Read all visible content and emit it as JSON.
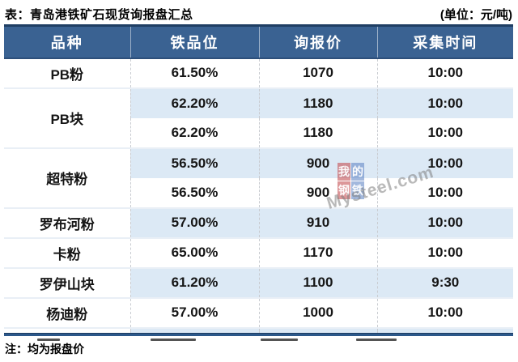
{
  "page": {
    "title": "表：青岛港铁矿石现货询报盘汇总",
    "unit": "(单位：元/吨)",
    "note": "注：均为报盘价"
  },
  "table": {
    "headers": [
      "品种",
      "铁品位",
      "询报价",
      "采集时间"
    ],
    "rows": [
      {
        "variety": "PB粉",
        "grade": "61.50%",
        "price": "1070",
        "time": "10:00"
      },
      {
        "variety": "PB块",
        "grade": "62.20%",
        "price": "1180",
        "time": "10:00"
      },
      {
        "grade": "62.20%",
        "price": "1180",
        "time": "10:00"
      },
      {
        "variety": "超特粉",
        "grade": "56.50%",
        "price": "900",
        "time": "10:00"
      },
      {
        "grade": "56.50%",
        "price": "900",
        "time": "10:00"
      },
      {
        "variety": "罗布河粉",
        "grade": "57.00%",
        "price": "910",
        "time": "10:00"
      },
      {
        "variety": "卡粉",
        "grade": "65.00%",
        "price": "1170",
        "time": "10:00"
      },
      {
        "variety": "罗伊山块",
        "grade": "61.20%",
        "price": "1100",
        "time": "9:30"
      },
      {
        "variety": "杨迪粉",
        "grade": "57.00%",
        "price": "1000",
        "time": "10:00"
      }
    ]
  },
  "watermark": {
    "squares": [
      "我",
      "的",
      "钢",
      "铁"
    ],
    "brand_text": "Mysteel.com",
    "red": "#c55054",
    "blue": "#6489c7"
  },
  "colors": {
    "header_bg": "#3a6292",
    "header_border": "#1f3e63",
    "row_alt": "#dce9f5",
    "bottom_border": "#2c588a"
  }
}
